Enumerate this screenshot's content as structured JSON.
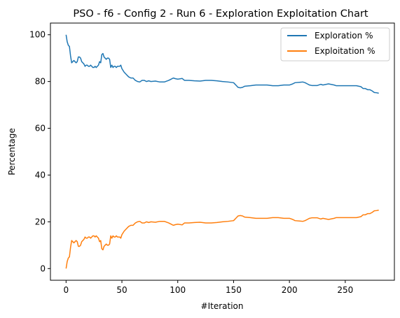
{
  "chart_data": {
    "type": "line",
    "title": "PSO - f6 - Config 2 - Run 6 - Exploration Exploitation Chart",
    "xlabel": "#Iteration",
    "ylabel": "Percentage",
    "xlim": [
      -14,
      294
    ],
    "ylim": [
      -5,
      105
    ],
    "xticks": [
      0,
      50,
      100,
      150,
      200,
      250
    ],
    "yticks": [
      0,
      20,
      40,
      60,
      80,
      100
    ],
    "grid": false,
    "legend_position": "top-right",
    "series": [
      {
        "name": "Exploration %",
        "color": "#1f77b4",
        "points": [
          [
            0,
            100
          ],
          [
            1,
            97
          ],
          [
            2,
            95.5
          ],
          [
            3,
            95
          ],
          [
            4,
            91
          ],
          [
            5,
            88
          ],
          [
            6,
            88.5
          ],
          [
            7,
            89
          ],
          [
            8,
            88.5
          ],
          [
            9,
            88
          ],
          [
            10,
            88.5
          ],
          [
            11,
            90.5
          ],
          [
            12,
            90.5
          ],
          [
            13,
            90
          ],
          [
            14,
            88.5
          ],
          [
            15,
            88
          ],
          [
            16,
            87.5
          ],
          [
            17,
            86.5
          ],
          [
            18,
            87
          ],
          [
            19,
            87
          ],
          [
            20,
            86.5
          ],
          [
            21,
            86.5
          ],
          [
            22,
            87
          ],
          [
            23,
            86.5
          ],
          [
            24,
            86
          ],
          [
            25,
            86
          ],
          [
            26,
            86.5
          ],
          [
            27,
            86
          ],
          [
            28,
            86.5
          ],
          [
            29,
            87
          ],
          [
            30,
            88.5
          ],
          [
            31,
            88
          ],
          [
            32,
            91.5
          ],
          [
            33,
            92
          ],
          [
            34,
            90.5
          ],
          [
            35,
            90
          ],
          [
            36,
            89.5
          ],
          [
            37,
            90
          ],
          [
            38,
            90
          ],
          [
            39,
            89.5
          ],
          [
            40,
            86
          ],
          [
            41,
            87
          ],
          [
            42,
            86
          ],
          [
            43,
            86.5
          ],
          [
            44,
            86.5
          ],
          [
            45,
            86
          ],
          [
            46,
            86.5
          ],
          [
            47,
            86.5
          ],
          [
            48,
            86.5
          ],
          [
            49,
            87
          ],
          [
            50,
            85.5
          ],
          [
            52,
            84
          ],
          [
            54,
            83
          ],
          [
            56,
            82
          ],
          [
            58,
            81.5
          ],
          [
            60,
            81.5
          ],
          [
            62,
            80.5
          ],
          [
            64,
            80
          ],
          [
            66,
            79.8
          ],
          [
            68,
            80.5
          ],
          [
            70,
            80.5
          ],
          [
            72,
            80
          ],
          [
            74,
            80.3
          ],
          [
            76,
            80
          ],
          [
            80,
            80.2
          ],
          [
            84,
            79.8
          ],
          [
            88,
            79.8
          ],
          [
            92,
            80.5
          ],
          [
            94,
            81
          ],
          [
            96,
            81.5
          ],
          [
            98,
            81.2
          ],
          [
            100,
            81
          ],
          [
            104,
            81.3
          ],
          [
            106,
            80.5
          ],
          [
            110,
            80.5
          ],
          [
            115,
            80.3
          ],
          [
            120,
            80.2
          ],
          [
            125,
            80.5
          ],
          [
            130,
            80.5
          ],
          [
            135,
            80.3
          ],
          [
            140,
            80
          ],
          [
            145,
            79.8
          ],
          [
            150,
            79.5
          ],
          [
            152,
            78.5
          ],
          [
            154,
            77.5
          ],
          [
            156,
            77.3
          ],
          [
            158,
            77.5
          ],
          [
            160,
            78
          ],
          [
            165,
            78.2
          ],
          [
            170,
            78.5
          ],
          [
            175,
            78.5
          ],
          [
            180,
            78.5
          ],
          [
            185,
            78.2
          ],
          [
            190,
            78.2
          ],
          [
            195,
            78.5
          ],
          [
            200,
            78.5
          ],
          [
            203,
            79
          ],
          [
            205,
            79.5
          ],
          [
            210,
            79.7
          ],
          [
            212,
            79.8
          ],
          [
            214,
            79.5
          ],
          [
            216,
            79
          ],
          [
            218,
            78.5
          ],
          [
            220,
            78.3
          ],
          [
            225,
            78.3
          ],
          [
            228,
            78.8
          ],
          [
            230,
            78.5
          ],
          [
            235,
            79
          ],
          [
            240,
            78.5
          ],
          [
            242,
            78.2
          ],
          [
            250,
            78.2
          ],
          [
            255,
            78.2
          ],
          [
            260,
            78.2
          ],
          [
            264,
            77.8
          ],
          [
            266,
            77
          ],
          [
            268,
            77
          ],
          [
            270,
            76.5
          ],
          [
            272,
            76.5
          ],
          [
            274,
            76
          ],
          [
            276,
            75.3
          ],
          [
            278,
            75.2
          ],
          [
            280,
            75
          ]
        ]
      },
      {
        "name": "Exploitation %",
        "color": "#ff7f0e",
        "points": [
          [
            0,
            0
          ],
          [
            1,
            3
          ],
          [
            2,
            4.5
          ],
          [
            3,
            5
          ],
          [
            4,
            9
          ],
          [
            5,
            12
          ],
          [
            6,
            11.5
          ],
          [
            7,
            11
          ],
          [
            8,
            11.5
          ],
          [
            9,
            12
          ],
          [
            10,
            11.5
          ],
          [
            11,
            9.5
          ],
          [
            12,
            9.5
          ],
          [
            13,
            10
          ],
          [
            14,
            11.5
          ],
          [
            15,
            12
          ],
          [
            16,
            12.5
          ],
          [
            17,
            13.5
          ],
          [
            18,
            13
          ],
          [
            19,
            13
          ],
          [
            20,
            13.5
          ],
          [
            21,
            13.5
          ],
          [
            22,
            13
          ],
          [
            23,
            13.5
          ],
          [
            24,
            14
          ],
          [
            25,
            14
          ],
          [
            26,
            13.5
          ],
          [
            27,
            14
          ],
          [
            28,
            13.5
          ],
          [
            29,
            13
          ],
          [
            30,
            11.5
          ],
          [
            31,
            12
          ],
          [
            32,
            8.5
          ],
          [
            33,
            8
          ],
          [
            34,
            9.5
          ],
          [
            35,
            10
          ],
          [
            36,
            10.5
          ],
          [
            37,
            10
          ],
          [
            38,
            10
          ],
          [
            39,
            10.5
          ],
          [
            40,
            14
          ],
          [
            41,
            13
          ],
          [
            42,
            14
          ],
          [
            43,
            13.5
          ],
          [
            44,
            13.5
          ],
          [
            45,
            14
          ],
          [
            46,
            13.5
          ],
          [
            47,
            13.5
          ],
          [
            48,
            13.5
          ],
          [
            49,
            13
          ],
          [
            50,
            14.5
          ],
          [
            52,
            16
          ],
          [
            54,
            17
          ],
          [
            56,
            18
          ],
          [
            58,
            18.5
          ],
          [
            60,
            18.5
          ],
          [
            62,
            19.5
          ],
          [
            64,
            20
          ],
          [
            66,
            20.2
          ],
          [
            68,
            19.5
          ],
          [
            70,
            19.5
          ],
          [
            72,
            20
          ],
          [
            74,
            19.7
          ],
          [
            76,
            20
          ],
          [
            80,
            19.8
          ],
          [
            84,
            20.2
          ],
          [
            88,
            20.2
          ],
          [
            92,
            19.5
          ],
          [
            94,
            19
          ],
          [
            96,
            18.5
          ],
          [
            98,
            18.8
          ],
          [
            100,
            19
          ],
          [
            104,
            18.7
          ],
          [
            106,
            19.5
          ],
          [
            110,
            19.5
          ],
          [
            115,
            19.7
          ],
          [
            120,
            19.8
          ],
          [
            125,
            19.5
          ],
          [
            130,
            19.5
          ],
          [
            135,
            19.7
          ],
          [
            140,
            20
          ],
          [
            145,
            20.2
          ],
          [
            150,
            20.5
          ],
          [
            152,
            21.5
          ],
          [
            154,
            22.5
          ],
          [
            156,
            22.7
          ],
          [
            158,
            22.5
          ],
          [
            160,
            22
          ],
          [
            165,
            21.8
          ],
          [
            170,
            21.5
          ],
          [
            175,
            21.5
          ],
          [
            180,
            21.5
          ],
          [
            185,
            21.8
          ],
          [
            190,
            21.8
          ],
          [
            195,
            21.5
          ],
          [
            200,
            21.5
          ],
          [
            203,
            21
          ],
          [
            205,
            20.5
          ],
          [
            210,
            20.3
          ],
          [
            212,
            20.2
          ],
          [
            214,
            20.5
          ],
          [
            216,
            21
          ],
          [
            218,
            21.5
          ],
          [
            220,
            21.7
          ],
          [
            225,
            21.7
          ],
          [
            228,
            21.2
          ],
          [
            230,
            21.5
          ],
          [
            235,
            21
          ],
          [
            240,
            21.5
          ],
          [
            242,
            21.8
          ],
          [
            250,
            21.8
          ],
          [
            255,
            21.8
          ],
          [
            260,
            21.8
          ],
          [
            264,
            22.2
          ],
          [
            266,
            23
          ],
          [
            268,
            23
          ],
          [
            270,
            23.5
          ],
          [
            272,
            23.5
          ],
          [
            274,
            24
          ],
          [
            276,
            24.7
          ],
          [
            278,
            24.8
          ],
          [
            280,
            25
          ]
        ]
      }
    ]
  }
}
